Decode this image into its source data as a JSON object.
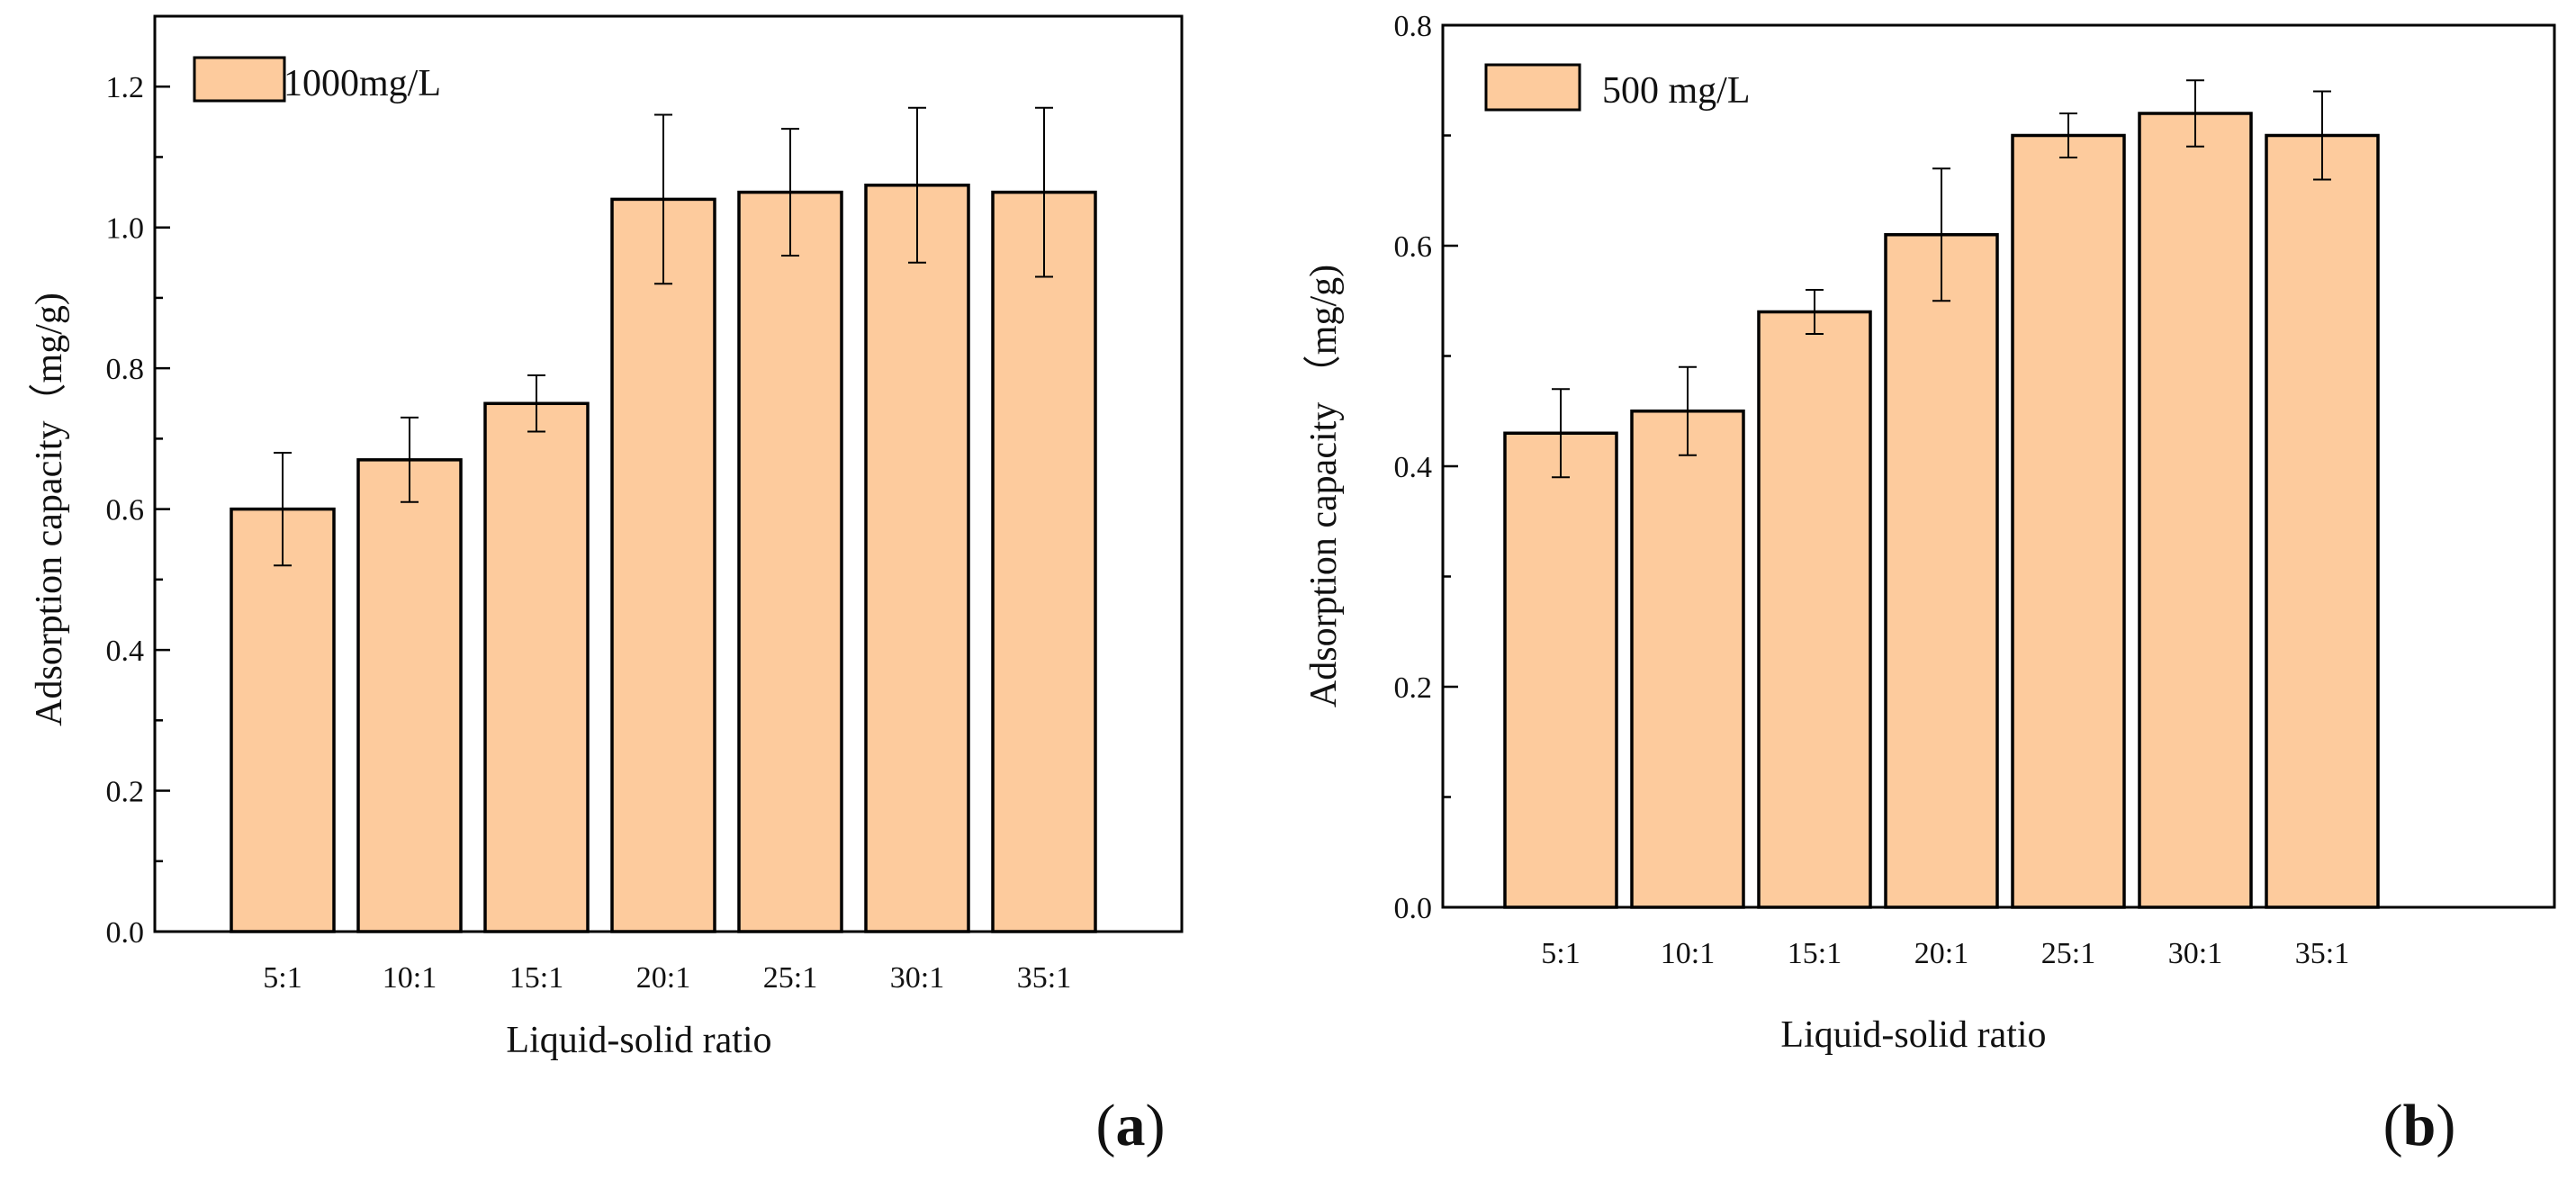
{
  "colors": {
    "bar_fill": "#FDCB9D",
    "stroke": "#000000",
    "background": "#FFFFFF"
  },
  "chart_data": [
    {
      "type": "bar",
      "panel_label": "a",
      "legend": "1000mg/L",
      "categories": [
        "5:1",
        "10:1",
        "15:1",
        "20:1",
        "25:1",
        "30:1",
        "35:1"
      ],
      "values": [
        0.6,
        0.67,
        0.75,
        1.04,
        1.05,
        1.06,
        1.05
      ],
      "errors": [
        0.08,
        0.06,
        0.04,
        0.12,
        0.09,
        0.11,
        0.12
      ],
      "xlabel": "Liquid-solid ratio",
      "ylabel": "Adsorption capacity（mg/g)",
      "ylim": [
        0,
        1.3
      ],
      "yticks": [
        "0.0",
        "0.2",
        "0.4",
        "0.6",
        "0.8",
        "1.0",
        "1.2"
      ],
      "ytick_values": [
        0,
        0.2,
        0.4,
        0.6,
        0.8,
        1.0,
        1.2
      ],
      "minor_tick_step": 0.1
    },
    {
      "type": "bar",
      "panel_label": "b",
      "legend": "500 mg/L",
      "categories": [
        "5:1",
        "10:1",
        "15:1",
        "20:1",
        "25:1",
        "30:1",
        "35:1"
      ],
      "values": [
        0.43,
        0.45,
        0.54,
        0.61,
        0.7,
        0.72,
        0.7
      ],
      "errors": [
        0.04,
        0.04,
        0.02,
        0.06,
        0.02,
        0.03,
        0.04
      ],
      "xlabel": "Liquid-solid ratio",
      "ylabel": "Adsorption capacity （mg/g)",
      "ylim": [
        0,
        0.8
      ],
      "yticks": [
        "0.0",
        "0.2",
        "0.4",
        "0.6",
        "0.8"
      ],
      "ytick_values": [
        0,
        0.2,
        0.4,
        0.6,
        0.8
      ],
      "minor_tick_step": 0.1
    }
  ]
}
